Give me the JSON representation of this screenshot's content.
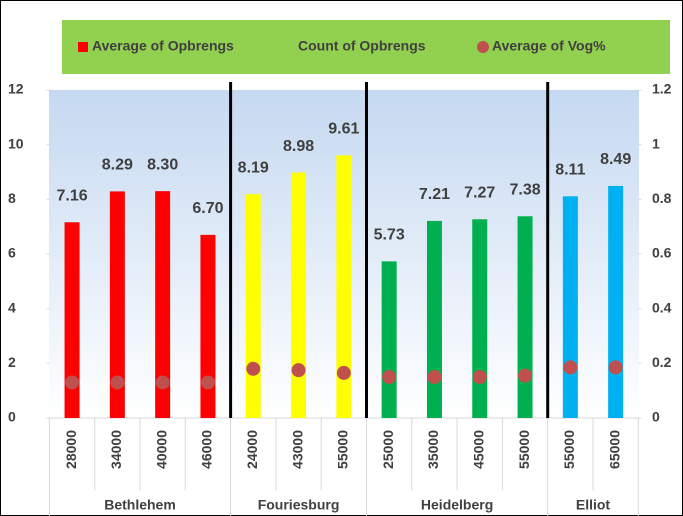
{
  "chart_data": {
    "type": "bar",
    "groups": [
      {
        "name": "Bethlehem",
        "categories": [
          "28000",
          "34000",
          "40000",
          "46000"
        ]
      },
      {
        "name": "Fouriesburg",
        "categories": [
          "24000",
          "43000",
          "55000"
        ]
      },
      {
        "name": "Heidelberg",
        "categories": [
          "25000",
          "35000",
          "45000",
          "55000"
        ]
      },
      {
        "name": "Elliot",
        "categories": [
          "55000",
          "65000"
        ]
      }
    ],
    "series": [
      {
        "name": "Average of Opbrengs",
        "color": "#ff0000",
        "colors": [
          "#ff0000",
          "#ff0000",
          "#ff0000",
          "#ff0000",
          "#ffff00",
          "#ffff00",
          "#ffff00",
          "#00b050",
          "#00b050",
          "#00b050",
          "#00b050",
          "#00b0f0",
          "#00b0f0"
        ],
        "values": [
          7.16,
          8.29,
          8.3,
          6.7,
          8.19,
          8.98,
          9.61,
          5.73,
          7.21,
          7.27,
          7.38,
          8.11,
          8.49
        ],
        "value_labels": [
          "7.16",
          "8.29",
          "8.30",
          "6.70",
          "8.19",
          "8.98",
          "9.61",
          "5.73",
          "7.21",
          "7.27",
          "7.38",
          "8.11",
          "8.49"
        ]
      },
      {
        "name": "Count of Opbrengs",
        "values": [
          null,
          null,
          null,
          null,
          null,
          null,
          null,
          null,
          null,
          null,
          null,
          null,
          null
        ]
      },
      {
        "name": "Average of Vog%",
        "color": "#c0504d",
        "axis": "y2",
        "values": [
          0.13,
          0.13,
          0.13,
          0.13,
          0.18,
          0.175,
          0.165,
          0.15,
          0.15,
          0.15,
          0.155,
          0.185,
          0.185
        ]
      }
    ],
    "ylim": [
      0,
      12
    ],
    "yticks": [
      0,
      2,
      4,
      6,
      8,
      10,
      12
    ],
    "y2lim": [
      0,
      1.2
    ],
    "y2ticks": [
      0,
      0.2,
      0.4,
      0.6,
      0.8,
      1,
      1.2
    ]
  }
}
